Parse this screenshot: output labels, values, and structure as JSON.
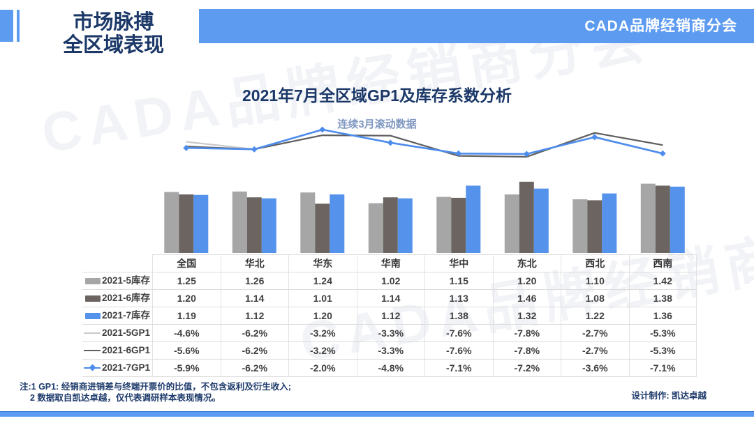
{
  "header": {
    "page_title_line1": "市场脉搏",
    "page_title_line2": "全区域表现",
    "org_name": "CADA品牌经销商分会"
  },
  "chart": {
    "title": "2021年7月全区域GP1及库存系数分析",
    "subtitle": "连续3月滚动数据"
  },
  "chart_data": {
    "type": "bar+line combo",
    "categories": [
      "全国",
      "华北",
      "华东",
      "华南",
      "华中",
      "东北",
      "西北",
      "西南"
    ],
    "bar_series": [
      {
        "name": "2021-5库存",
        "color": "#a6a6a6",
        "values": [
          1.25,
          1.26,
          1.24,
          1.02,
          1.15,
          1.2,
          1.1,
          1.42
        ]
      },
      {
        "name": "2021-6库存",
        "color": "#6b6460",
        "values": [
          1.2,
          1.14,
          1.01,
          1.14,
          1.13,
          1.46,
          1.08,
          1.38
        ]
      },
      {
        "name": "2021-7库存",
        "color": "#5592ec",
        "values": [
          1.19,
          1.12,
          1.2,
          1.12,
          1.38,
          1.32,
          1.22,
          1.36
        ]
      }
    ],
    "line_series": [
      {
        "name": "2021-5GP1",
        "color": "#c9c9c9",
        "marker": "none",
        "values_pct": [
          -4.6,
          -6.2,
          -3.2,
          -3.3,
          -7.6,
          -7.8,
          -2.7,
          -5.3
        ]
      },
      {
        "name": "2021-6GP1",
        "color": "#5f5f5f",
        "marker": "none",
        "values_pct": [
          -5.6,
          -6.2,
          -3.2,
          -3.3,
          -7.6,
          -7.8,
          -2.7,
          -5.3
        ]
      },
      {
        "name": "2021-7GP1",
        "color": "#4d8cec",
        "marker": "diamond",
        "values_pct": [
          -5.9,
          -6.2,
          -2.0,
          -4.8,
          -7.1,
          -7.2,
          -3.6,
          -7.1
        ]
      }
    ],
    "value_formats": {
      "bar_rows": "two_decimals",
      "line_rows": "percent_one_decimal"
    },
    "legend_position": "table-left-column",
    "grid": false
  },
  "notes": {
    "line1": "注:1 GP1: 经销商进销差与终端开票价的比值，不包含返利及衍生收入;",
    "line2": "2 数据取自凯达卓越，仅代表调研样本表现情况。"
  },
  "credit": "设计制作: 凯达卓越",
  "watermark_text": "CADA品牌经销商分会",
  "colors": {
    "banner_blue": "#5d9bf0",
    "title_navy": "#1b3868",
    "subtitle_blue_gray": "#8098c2",
    "bar_gray_light": "#a6a6a6",
    "bar_gray_dark": "#6b6460",
    "bar_blue": "#5592ec",
    "line_gray_light": "#c9c9c9",
    "line_gray_dark": "#5f5f5f",
    "line_blue": "#4d8cec"
  }
}
